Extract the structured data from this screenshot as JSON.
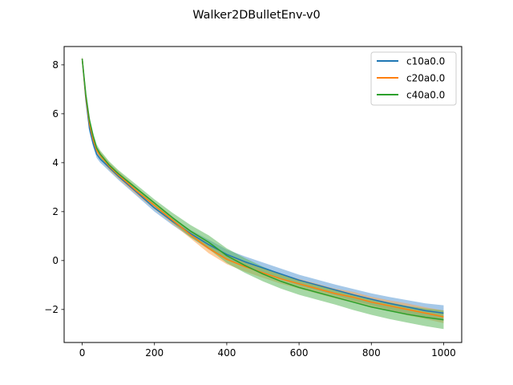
{
  "chart_data": {
    "type": "line",
    "title": "Walker2DBulletEnv-v0",
    "xlabel": "",
    "ylabel": "",
    "xlim": [
      -50,
      1050
    ],
    "ylim": [
      -3.35,
      8.75
    ],
    "xticks": [
      0,
      200,
      400,
      600,
      800,
      1000
    ],
    "yticks": [
      -2,
      0,
      2,
      4,
      6,
      8
    ],
    "xtick_labels": [
      "0",
      "200",
      "400",
      "600",
      "800",
      "1000"
    ],
    "ytick_labels": [
      "−2",
      "0",
      "2",
      "4",
      "6",
      "8"
    ],
    "grid": false,
    "legend_position": "top-right",
    "x": [
      0,
      10,
      20,
      30,
      40,
      50,
      75,
      100,
      150,
      200,
      250,
      300,
      350,
      400,
      450,
      500,
      550,
      600,
      650,
      700,
      750,
      800,
      850,
      900,
      950,
      1000
    ],
    "series": [
      {
        "name": "c10a0.0",
        "color": "#1f77b4",
        "band_color": "#5b9bd5",
        "values": [
          8.25,
          6.6,
          5.4,
          4.8,
          4.35,
          4.15,
          3.8,
          3.45,
          2.8,
          2.15,
          1.6,
          1.1,
          0.65,
          0.25,
          -0.05,
          -0.3,
          -0.55,
          -0.8,
          -1.0,
          -1.2,
          -1.4,
          -1.58,
          -1.75,
          -1.9,
          -2.05,
          -2.15
        ],
        "band": [
          0.1,
          0.1,
          0.15,
          0.15,
          0.15,
          0.15,
          0.15,
          0.15,
          0.15,
          0.15,
          0.15,
          0.15,
          0.2,
          0.2,
          0.22,
          0.22,
          0.22,
          0.22,
          0.22,
          0.22,
          0.24,
          0.24,
          0.26,
          0.28,
          0.3,
          0.32
        ]
      },
      {
        "name": "c20a0.0",
        "color": "#ff7f0e",
        "band_color": "#ffa64d",
        "values": [
          8.25,
          6.7,
          5.6,
          4.95,
          4.5,
          4.3,
          3.85,
          3.5,
          2.85,
          2.25,
          1.65,
          1.05,
          0.5,
          0.05,
          -0.25,
          -0.5,
          -0.75,
          -0.95,
          -1.15,
          -1.35,
          -1.5,
          -1.7,
          -1.85,
          -2.0,
          -2.15,
          -2.3
        ],
        "band": [
          0.1,
          0.1,
          0.15,
          0.15,
          0.15,
          0.15,
          0.15,
          0.15,
          0.15,
          0.15,
          0.15,
          0.15,
          0.2,
          0.2,
          0.2,
          0.2,
          0.2,
          0.2,
          0.2,
          0.2,
          0.22,
          0.22,
          0.22,
          0.24,
          0.24,
          0.26
        ]
      },
      {
        "name": "c40a0.0",
        "color": "#2ca02c",
        "band_color": "#5cb85c",
        "values": [
          8.25,
          6.8,
          5.75,
          5.1,
          4.6,
          4.35,
          3.9,
          3.55,
          2.95,
          2.35,
          1.75,
          1.2,
          0.75,
          0.2,
          -0.2,
          -0.55,
          -0.85,
          -1.1,
          -1.3,
          -1.5,
          -1.7,
          -1.9,
          -2.05,
          -2.2,
          -2.32,
          -2.42
        ],
        "band": [
          0.1,
          0.1,
          0.15,
          0.15,
          0.15,
          0.15,
          0.15,
          0.15,
          0.15,
          0.15,
          0.2,
          0.25,
          0.28,
          0.3,
          0.3,
          0.3,
          0.3,
          0.3,
          0.3,
          0.3,
          0.32,
          0.32,
          0.34,
          0.34,
          0.36,
          0.38
        ]
      }
    ]
  }
}
